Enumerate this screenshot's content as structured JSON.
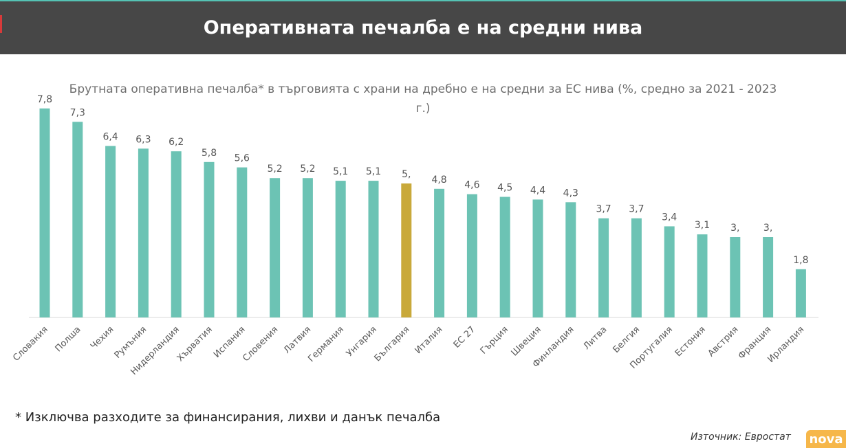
{
  "header": {
    "title": "Оперативната печалба е на средни нива"
  },
  "chart_data": {
    "type": "bar",
    "title": "Брутната оперативна печалба* в търговията с храни на дребно е на средни за ЕС нива (%, средно за 2021 - 2023 г.)",
    "categories": [
      "Словакия",
      "Полша",
      "Чехия",
      "Румъния",
      "Нидерландия",
      "Хърватия",
      "Испания",
      "Словения",
      "Латвия",
      "Германия",
      "Унгария",
      "България",
      "Италия",
      "ЕС 27",
      "Гърция",
      "Швеция",
      "Финландия",
      "Литва",
      "Белгия",
      "Португалия",
      "Естония",
      "Австрия",
      "Франция",
      "Ирландия"
    ],
    "values": [
      7.8,
      7.3,
      6.4,
      6.3,
      6.2,
      5.8,
      5.6,
      5.2,
      5.2,
      5.1,
      5.1,
      5.0,
      4.8,
      4.6,
      4.5,
      4.4,
      4.3,
      3.7,
      3.7,
      3.4,
      3.1,
      3.0,
      3.0,
      1.8
    ],
    "value_labels": [
      "7,8",
      "7,3",
      "6,4",
      "6,3",
      "6,2",
      "5,8",
      "5,6",
      "5,2",
      "5,2",
      "5,1",
      "5,1",
      "5,",
      "4,8",
      "4,6",
      "4,5",
      "4,4",
      "4,3",
      "3,7",
      "3,7",
      "3,4",
      "3,1",
      "3,",
      "3,",
      "1,8"
    ],
    "highlight_category": "България",
    "bar_color": "#6cc3b4",
    "highlight_color": "#c9a93a",
    "ylim": [
      0,
      8
    ],
    "grid": false,
    "legend": "none",
    "xlabel": "",
    "ylabel": ""
  },
  "footnote": "* Изключва разходите за финансирания, лихви и данък печалба",
  "source": "Източник: Евростат",
  "logo": "nova"
}
